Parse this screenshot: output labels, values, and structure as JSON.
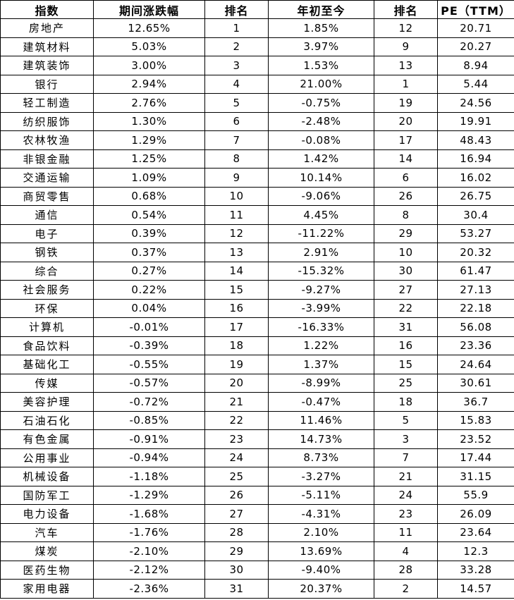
{
  "chart_data": {
    "type": "table",
    "columns": [
      "指数",
      "期间涨跌幅",
      "排名",
      "年初至今",
      "排名",
      "PE（TTM）"
    ],
    "rows": [
      [
        "房地产",
        "12.65%",
        "1",
        "1.85%",
        "12",
        "20.71"
      ],
      [
        "建筑材料",
        "5.03%",
        "2",
        "3.97%",
        "9",
        "20.27"
      ],
      [
        "建筑装饰",
        "3.00%",
        "3",
        "1.53%",
        "13",
        "8.94"
      ],
      [
        "银行",
        "2.94%",
        "4",
        "21.00%",
        "1",
        "5.44"
      ],
      [
        "轻工制造",
        "2.76%",
        "5",
        "-0.75%",
        "19",
        "24.56"
      ],
      [
        "纺织服饰",
        "1.30%",
        "6",
        "-2.48%",
        "20",
        "19.91"
      ],
      [
        "农林牧渔",
        "1.29%",
        "7",
        "-0.08%",
        "17",
        "48.43"
      ],
      [
        "非银金融",
        "1.25%",
        "8",
        "1.42%",
        "14",
        "16.94"
      ],
      [
        "交通运输",
        "1.09%",
        "9",
        "10.14%",
        "6",
        "16.02"
      ],
      [
        "商贸零售",
        "0.68%",
        "10",
        "-9.06%",
        "26",
        "26.75"
      ],
      [
        "通信",
        "0.54%",
        "11",
        "4.45%",
        "8",
        "30.4"
      ],
      [
        "电子",
        "0.39%",
        "12",
        "-11.22%",
        "29",
        "53.27"
      ],
      [
        "钢铁",
        "0.37%",
        "13",
        "2.91%",
        "10",
        "20.32"
      ],
      [
        "综合",
        "0.27%",
        "14",
        "-15.32%",
        "30",
        "61.47"
      ],
      [
        "社会服务",
        "0.22%",
        "15",
        "-9.27%",
        "27",
        "27.13"
      ],
      [
        "环保",
        "0.04%",
        "16",
        "-3.99%",
        "22",
        "22.18"
      ],
      [
        "计算机",
        "-0.01%",
        "17",
        "-16.33%",
        "31",
        "56.08"
      ],
      [
        "食品饮料",
        "-0.39%",
        "18",
        "1.22%",
        "16",
        "23.36"
      ],
      [
        "基础化工",
        "-0.55%",
        "19",
        "1.37%",
        "15",
        "24.64"
      ],
      [
        "传媒",
        "-0.57%",
        "20",
        "-8.99%",
        "25",
        "30.61"
      ],
      [
        "美容护理",
        "-0.72%",
        "21",
        "-0.47%",
        "18",
        "36.7"
      ],
      [
        "石油石化",
        "-0.85%",
        "22",
        "11.46%",
        "5",
        "15.83"
      ],
      [
        "有色金属",
        "-0.91%",
        "23",
        "14.73%",
        "3",
        "23.52"
      ],
      [
        "公用事业",
        "-0.94%",
        "24",
        "8.73%",
        "7",
        "17.44"
      ],
      [
        "机械设备",
        "-1.18%",
        "25",
        "-3.27%",
        "21",
        "31.15"
      ],
      [
        "国防军工",
        "-1.29%",
        "26",
        "-5.11%",
        "24",
        "55.9"
      ],
      [
        "电力设备",
        "-1.68%",
        "27",
        "-4.31%",
        "23",
        "26.09"
      ],
      [
        "汽车",
        "-1.76%",
        "28",
        "2.10%",
        "11",
        "23.64"
      ],
      [
        "煤炭",
        "-2.10%",
        "29",
        "13.69%",
        "4",
        "12.3"
      ],
      [
        "医药生物",
        "-2.12%",
        "30",
        "-9.40%",
        "28",
        "33.28"
      ],
      [
        "家用电器",
        "-2.36%",
        "31",
        "20.37%",
        "2",
        "14.57"
      ]
    ]
  }
}
